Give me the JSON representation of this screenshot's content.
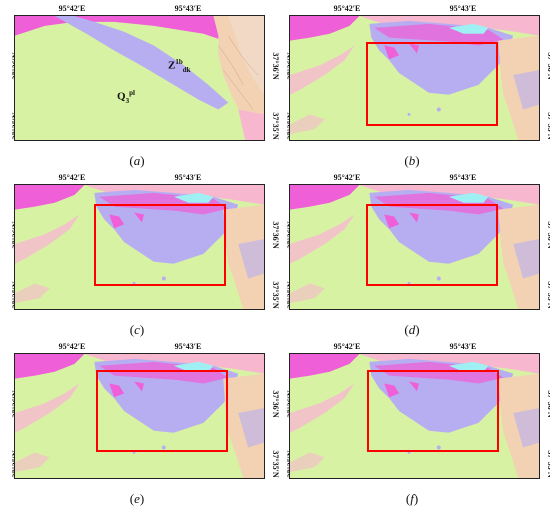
{
  "axes": {
    "lon_left": "95°42′E",
    "lon_right": "95°43′E",
    "lat_top": "37°36′N",
    "lat_bottom": "37°35′N"
  },
  "units": {
    "q3": {
      "main": "Q",
      "sub": "3",
      "sup": "pl"
    },
    "z1b": {
      "main": "Z",
      "sup": "1b",
      "sub": "dk"
    }
  },
  "panels": [
    {
      "id": "a",
      "label": "a",
      "roi": false
    },
    {
      "id": "b",
      "label": "b",
      "roi": true
    },
    {
      "id": "c",
      "label": "c",
      "roi": true
    },
    {
      "id": "d",
      "label": "d",
      "roi": true
    },
    {
      "id": "e",
      "label": "e",
      "roi": true
    },
    {
      "id": "f",
      "label": "f",
      "roi": true
    }
  ],
  "colors": {
    "background_unit": "#d8f2a4",
    "z1b_unit": "#b7aef2",
    "magenta_unit": "#ef5fd8",
    "pink_unit": "#f7b8cf",
    "cyan_unit": "#9ff0f2",
    "tan_unit": "#f2d2b2",
    "roi_box": "#ff0000"
  }
}
